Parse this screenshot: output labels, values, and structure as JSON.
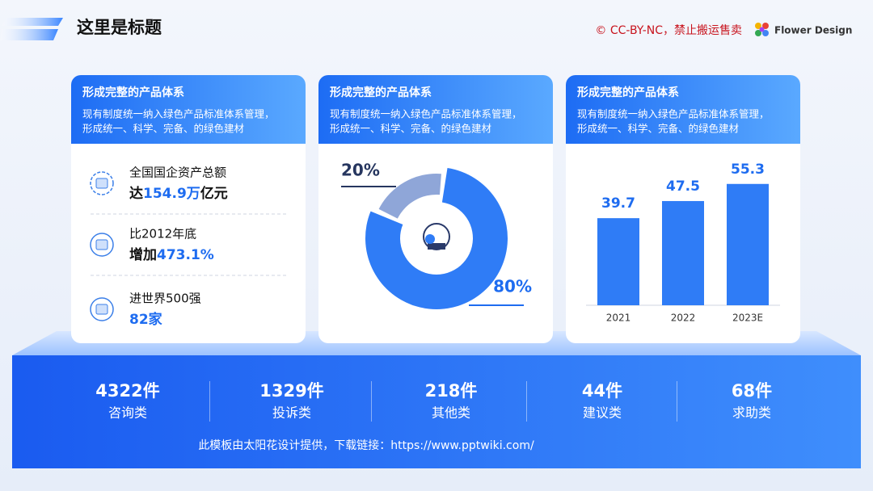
{
  "header": {
    "title": "这里是标题",
    "notice": "© CC-BY-NC，禁止搬运售卖",
    "brand": "Flower Design"
  },
  "cards": [
    {
      "title": "形成完整的产品体系",
      "description": [
        "现有制度统一纳入绿色产品标准体系管理，",
        "形成统一、科学、完备、的绿色建材"
      ]
    },
    {
      "title": "形成完整的产品体系",
      "description": [
        "现有制度统一纳入绿色产品标准体系管理，",
        "形成统一、科学、完备、的绿色建材"
      ]
    },
    {
      "title": "形成完整的产品体系",
      "description": [
        "现有制度统一纳入绿色产品标准体系管理，",
        "形成统一、科学、完备、的绿色建材"
      ]
    }
  ],
  "highlights": [
    {
      "label": "全国国企资产总额",
      "prefix": "达",
      "value": "154.9万",
      "suffix": "亿元"
    },
    {
      "label": "比2012年底",
      "prefix": "增加",
      "value": "473.1%"
    },
    {
      "label": "进世界500强",
      "value": "82家"
    }
  ],
  "chart_data": [
    {
      "type": "pie",
      "values": [
        20,
        80
      ],
      "value_labels": [
        "20%",
        "80%"
      ],
      "colors": [
        "#8fa6d8",
        "#2f7cf6"
      ],
      "label_colors": [
        "#26365f",
        "#1e6cf0"
      ]
    },
    {
      "type": "bar",
      "categories": [
        "2021",
        "2022",
        "2023E"
      ],
      "values": [
        39.7,
        47.5,
        55.3
      ],
      "color": "#2f7cf6",
      "ylim": [
        0,
        60
      ]
    }
  ],
  "stats": [
    {
      "value": "4322件",
      "label": "咨询类"
    },
    {
      "value": "1329件",
      "label": "投诉类"
    },
    {
      "value": "218件",
      "label": "其他类"
    },
    {
      "value": "44件",
      "label": "建议类"
    },
    {
      "value": "68件",
      "label": "求助类"
    }
  ],
  "footer": "此模板由太阳花设计提供，下载链接：https://www.pptwiki.com/"
}
